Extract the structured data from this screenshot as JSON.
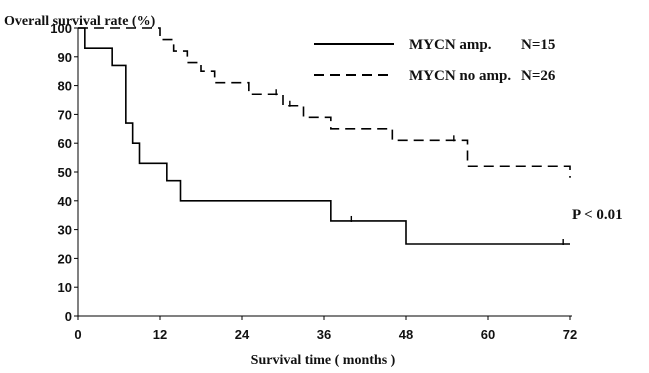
{
  "chart_data": {
    "type": "line",
    "step": true,
    "title": "",
    "ylabel": "Overall survival rate (%)",
    "xlabel": "Survival time ( months )",
    "xlim": [
      0,
      72
    ],
    "ylim": [
      0,
      100
    ],
    "xticks": [
      0,
      12,
      24,
      36,
      48,
      60,
      72
    ],
    "yticks": [
      0,
      10,
      20,
      30,
      40,
      50,
      60,
      70,
      80,
      90,
      100
    ],
    "grid": false,
    "legend_position": "top-right",
    "series": [
      {
        "name": "MYCN amp.",
        "n_label": "N=15",
        "style": "solid",
        "color": "#000000",
        "x": [
          0,
          1,
          5,
          7,
          8,
          9,
          13,
          15,
          37,
          48,
          72
        ],
        "y": [
          100,
          93,
          87,
          67,
          60,
          53,
          47,
          40,
          33,
          25,
          25
        ],
        "censored": [
          {
            "x": 40,
            "y": 33
          },
          {
            "x": 71,
            "y": 25
          }
        ]
      },
      {
        "name": "MYCN no amp.",
        "n_label": "N=26",
        "style": "dashed",
        "color": "#000000",
        "x": [
          0,
          12,
          14,
          16,
          18,
          20,
          22,
          25,
          30,
          31,
          33,
          35,
          37,
          46,
          56,
          57,
          72
        ],
        "y": [
          100,
          96,
          92,
          88,
          85,
          81,
          81,
          77,
          73,
          73,
          69,
          69,
          65,
          61,
          61,
          52,
          48
        ],
        "censored": [
          {
            "x": 29,
            "y": 77
          },
          {
            "x": 31,
            "y": 73
          },
          {
            "x": 55,
            "y": 61
          }
        ]
      }
    ],
    "annotations": [
      {
        "text": "P < 0.01",
        "x": 72,
        "y": 40
      }
    ]
  }
}
